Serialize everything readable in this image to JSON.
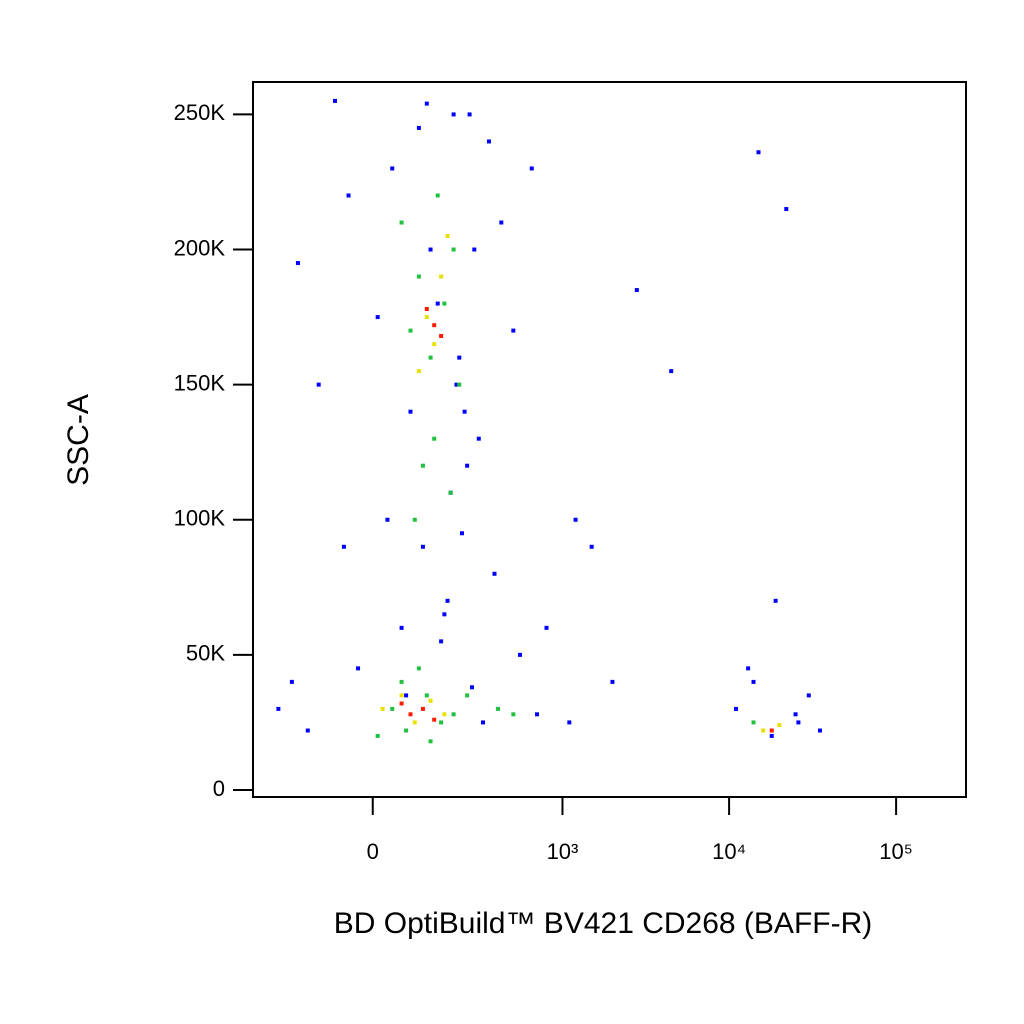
{
  "chart_data": {
    "type": "scatter",
    "x_label": "BD OptiBuild™ BV421 CD268 (BAFF-R)",
    "y_label": "SSC-A",
    "xscale": "biexponential",
    "xlim": [
      -369,
      262144
    ],
    "ylim": [
      -2600,
      262000
    ],
    "xticks": [
      0,
      {
        "value": 1000,
        "label": "10³"
      },
      {
        "value": 10000,
        "label": "10⁴"
      },
      {
        "value": 100000,
        "label": "10⁵"
      }
    ],
    "yticks": [
      0,
      {
        "value": 50000,
        "label": "50K"
      },
      {
        "value": 100000,
        "label": "100K"
      },
      {
        "value": 150000,
        "label": "150K"
      },
      {
        "value": 200000,
        "label": "200K"
      },
      {
        "value": 250000,
        "label": "250K"
      }
    ],
    "series": [
      {
        "color": "#0000ff",
        "x": [
          -250,
          -180,
          -120,
          -60,
          350,
          420,
          500,
          650,
          800,
          1200,
          1500,
          2000,
          2800,
          4500,
          1100,
          700,
          550,
          -200,
          -150,
          300,
          380,
          260,
          -80,
          120,
          200,
          250,
          -50,
          180,
          320,
          11000,
          13000,
          15000,
          18000,
          22000,
          26000,
          30000,
          35000,
          14000,
          25000,
          19000,
          30,
          80,
          150,
          220,
          280,
          60,
          110,
          190,
          240,
          40,
          100,
          170,
          230,
          10,
          130,
          210,
          -30,
          70,
          160,
          270
        ],
        "values": [
          30000,
          195000,
          150000,
          90000,
          240000,
          210000,
          170000,
          230000,
          60000,
          100000,
          90000,
          40000,
          185000,
          155000,
          25000,
          28000,
          50000,
          40000,
          22000,
          130000,
          80000,
          250000,
          255000,
          254000,
          250000,
          120000,
          220000,
          70000,
          25000,
          30000,
          45000,
          236000,
          20000,
          215000,
          25000,
          35000,
          22000,
          40000,
          28000,
          70000,
          100000,
          140000,
          180000,
          160000,
          200000,
          60000,
          90000,
          110000,
          140000,
          230000,
          245000,
          65000,
          95000,
          175000,
          200000,
          150000,
          45000,
          35000,
          55000,
          38000
        ]
      },
      {
        "color": "#20c040",
        "x": [
          60,
          100,
          150,
          200,
          80,
          130,
          170,
          220,
          110,
          90,
          140,
          190,
          60,
          120,
          160,
          40,
          100,
          200,
          10,
          70,
          130,
          250,
          400,
          500,
          14000
        ],
        "values": [
          210000,
          190000,
          220000,
          200000,
          170000,
          160000,
          180000,
          150000,
          120000,
          100000,
          130000,
          110000,
          40000,
          35000,
          25000,
          30000,
          45000,
          28000,
          20000,
          22000,
          18000,
          35000,
          30000,
          28000,
          25000
        ]
      },
      {
        "color": "#e8e000",
        "x": [
          120,
          160,
          140,
          180,
          100,
          60,
          90,
          130,
          20,
          170,
          16000,
          20000
        ],
        "values": [
          175000,
          190000,
          165000,
          205000,
          155000,
          35000,
          25000,
          33000,
          30000,
          28000,
          22000,
          24000
        ]
      },
      {
        "color": "#ff1a00",
        "x": [
          140,
          160,
          120,
          80,
          110,
          140,
          60,
          18000
        ],
        "values": [
          172000,
          168000,
          178000,
          28000,
          30000,
          26000,
          32000,
          22000
        ]
      }
    ]
  }
}
